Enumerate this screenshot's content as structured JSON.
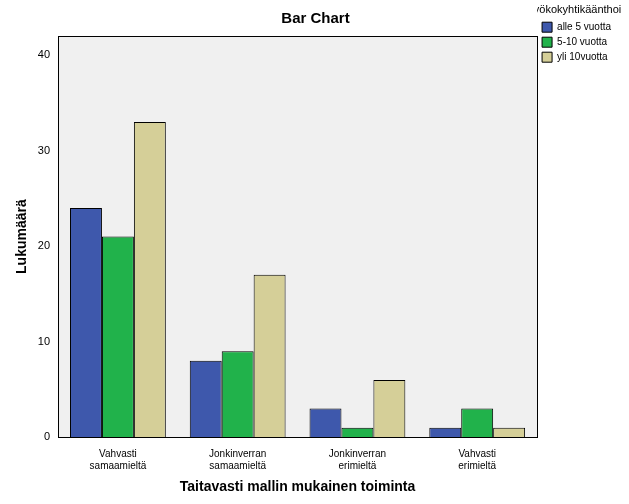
{
  "chart_data": {
    "type": "bar",
    "title": "Bar Chart",
    "x_label": "Taitavasti mallin mukainen toiminta",
    "y_label": "Lukumäärä",
    "legend_title": "Ltyökokyhtikäänthoitot",
    "categories": [
      "Vahvasti samaamieltä",
      "Jonkinverran samaamieltä",
      "Jonkinverran erimieltä",
      "Vahvasti erimieltä"
    ],
    "series": [
      {
        "name": "alle 5 vuotta",
        "color": "#3e58ac",
        "values": [
          24,
          8,
          3,
          1
        ]
      },
      {
        "name": "5-10 vuotta",
        "color": "#21b24b",
        "values": [
          21,
          9,
          1,
          3
        ]
      },
      {
        "name": "yli 10vuotta",
        "color": "#d5cf98",
        "values": [
          33,
          17,
          6,
          1
        ]
      }
    ],
    "ylim": [
      0,
      42
    ],
    "yticks": [
      0,
      10,
      20,
      30,
      40
    ],
    "grid": false,
    "legend": "right"
  }
}
